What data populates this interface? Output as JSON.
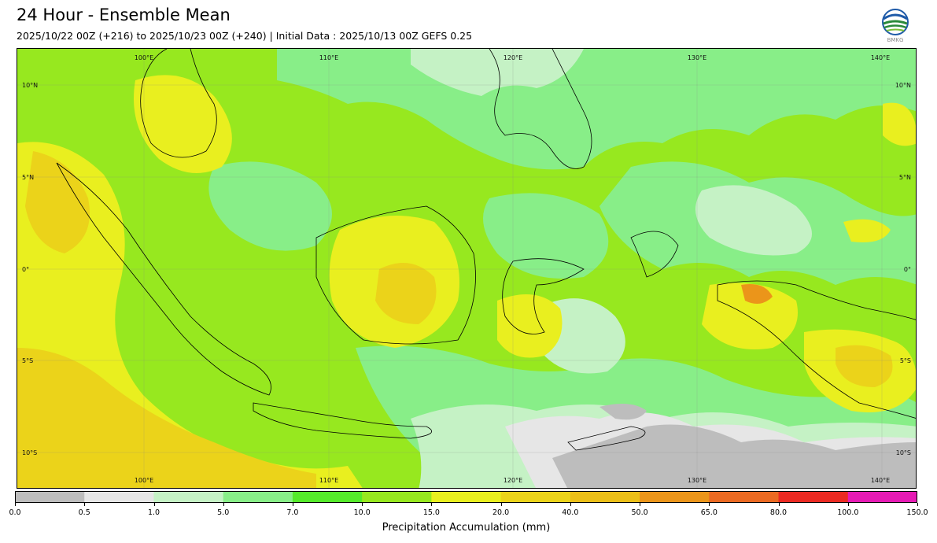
{
  "header": {
    "title": "24 Hour - Ensemble Mean",
    "subtitle": "2025/10/22 00Z (+216) to 2025/10/23 00Z (+240) | Initial Data : 2025/10/13 00Z GEFS 0.25",
    "logo_text": "BMKG"
  },
  "map": {
    "lon_labels": [
      "100°E",
      "110°E",
      "120°E",
      "130°E",
      "140°E"
    ],
    "lat_labels": [
      "10°N",
      "5°N",
      "0°",
      "5°S",
      "10°S"
    ],
    "extent": {
      "lon": [
        92,
        142
      ],
      "lat": [
        -12,
        12
      ]
    }
  },
  "colorbar": {
    "label": "Precipitation Accumulation (mm)",
    "ticks": [
      "0.0",
      "0.5",
      "1.0",
      "5.0",
      "7.0",
      "10.0",
      "15.0",
      "20.0",
      "40.0",
      "50.0",
      "65.0",
      "80.0",
      "100.0",
      "150.0"
    ],
    "colors": [
      "#bdbdbd",
      "#e6e6e6",
      "#c5f2c5",
      "#88ee88",
      "#55ea2b",
      "#97e81f",
      "#e9ef1f",
      "#ebd31a",
      "#ebbf18",
      "#eb951a",
      "#eb6a22",
      "#eb2a22",
      "#e61ab4"
    ]
  }
}
